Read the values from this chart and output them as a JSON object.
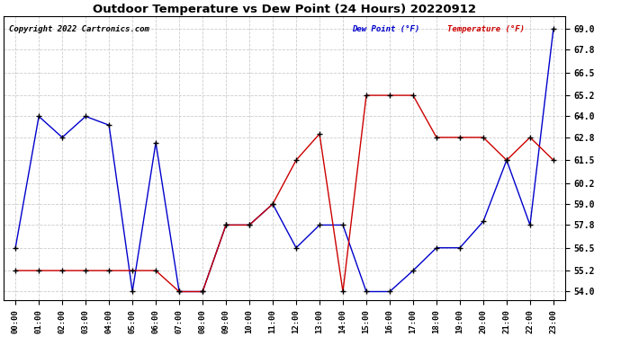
{
  "title": "Outdoor Temperature vs Dew Point (24 Hours) 20220912",
  "copyright": "Copyright 2022 Cartronics.com",
  "legend_dew": "Dew Point (°F)",
  "legend_temp": "Temperature (°F)",
  "x_labels": [
    "00:00",
    "01:00",
    "02:00",
    "03:00",
    "04:00",
    "05:00",
    "06:00",
    "07:00",
    "08:00",
    "09:00",
    "10:00",
    "11:00",
    "12:00",
    "13:00",
    "14:00",
    "15:00",
    "16:00",
    "17:00",
    "18:00",
    "19:00",
    "20:00",
    "21:00",
    "22:00",
    "23:00"
  ],
  "temperature": [
    56.5,
    64.0,
    62.8,
    64.0,
    63.5,
    54.0,
    62.5,
    54.0,
    54.0,
    57.8,
    57.8,
    59.0,
    56.5,
    57.8,
    57.8,
    54.0,
    54.0,
    55.2,
    56.5,
    56.5,
    58.0,
    61.5,
    57.8,
    69.0
  ],
  "dew_point": [
    55.2,
    55.2,
    55.2,
    55.2,
    55.2,
    55.2,
    55.2,
    54.0,
    54.0,
    57.8,
    57.8,
    59.0,
    61.5,
    63.0,
    54.0,
    65.2,
    65.2,
    65.2,
    62.8,
    62.8,
    62.8,
    61.5,
    62.8,
    61.5
  ],
  "ylim_min": 53.5,
  "ylim_max": 69.7,
  "yticks": [
    54.0,
    55.2,
    56.5,
    57.8,
    59.0,
    60.2,
    61.5,
    62.8,
    64.0,
    65.2,
    66.5,
    67.8,
    69.0
  ],
  "temp_color": "#0000cc",
  "dew_color": "#cc0000",
  "marker_color": "#000000",
  "bg_color": "#ffffff",
  "grid_color": "#cccccc",
  "title_color": "#000000",
  "copyright_color": "#000000",
  "legend_dew_color": "#0000cc",
  "legend_temp_color": "#cc0000"
}
